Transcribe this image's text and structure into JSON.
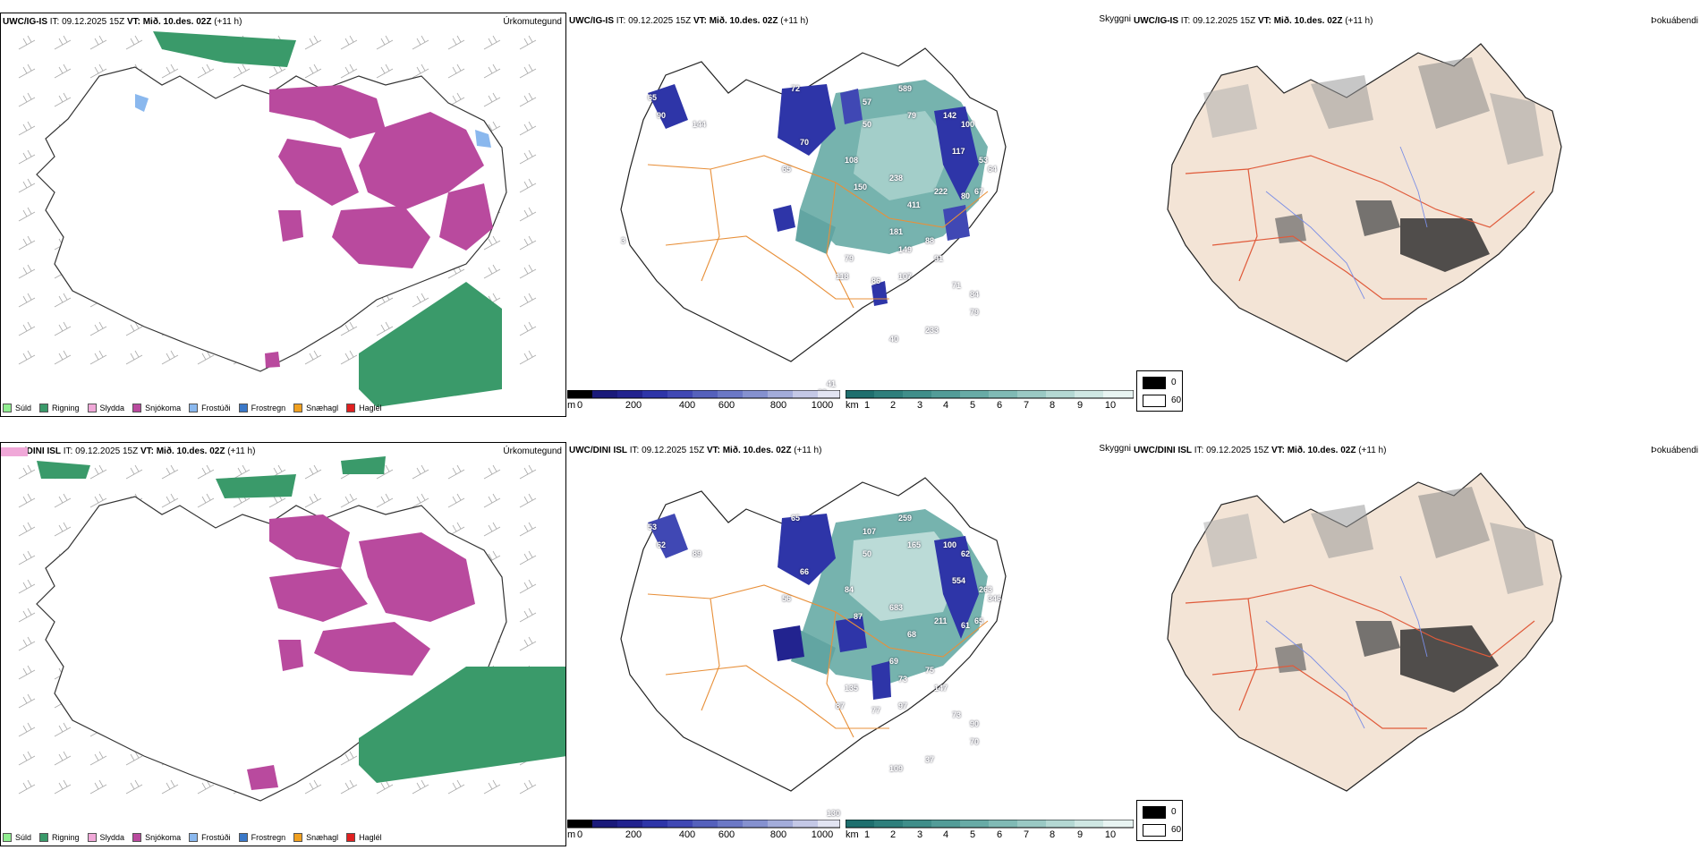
{
  "rows": [
    {
      "precip_panel": {
        "model": "UWC/IG-IS",
        "it_text": " IT: 09.12.2025 15Z ",
        "vt_label": "VT: Mið. 10.des. 02Z",
        "lead": " (+11 h)",
        "label": "Úrkomutegund"
      },
      "cloud_panel": {
        "model": "UWC/IG-IS",
        "it_text": " IT: 09.12.2025 15Z ",
        "vt_label": "VT: Mið. 10.des. 02Z",
        "lead": " (+11 h)",
        "label": "Skyggni",
        "point_values": [
          "65",
          "90",
          "144",
          "72",
          "70",
          "65",
          "108",
          "150",
          "50",
          "57",
          "589",
          "79",
          "142",
          "100",
          "117",
          "53",
          "64",
          "67",
          "80",
          "222",
          "411",
          "238",
          "181",
          "149",
          "88",
          "91",
          "79",
          "118",
          "107",
          "86",
          "71",
          "84",
          "79",
          "233",
          "40",
          "41",
          "23",
          "3"
        ]
      },
      "fog_panel": {
        "model": "UWC/IG-IS",
        "it_text": " IT: 09.12.2025 15Z ",
        "vt_label": "VT: Mið. 10.des. 02Z",
        "lead": " (+11 h)",
        "label": "Þokuábendi"
      }
    },
    {
      "precip_panel": {
        "model": "UWC/DINI ISL",
        "it_text": " IT: 09.12.2025 15Z ",
        "vt_label": "VT: Mið. 10.des. 02Z",
        "lead": " (+11 h)",
        "label": "Úrkomutegund"
      },
      "cloud_panel": {
        "model": "UWC/DINI ISL",
        "it_text": " IT: 09.12.2025 15Z ",
        "vt_label": "VT: Mið. 10.des. 02Z",
        "lead": " (+11 h)",
        "label": "Skyggni",
        "point_values": [
          "53",
          "62",
          "89",
          "65",
          "66",
          "56",
          "84",
          "87",
          "50",
          "107",
          "259",
          "165",
          "100",
          "62",
          "554",
          "263",
          "346",
          "65",
          "61",
          "211",
          "68",
          "683",
          "69",
          "73",
          "75",
          "147",
          "135",
          "87",
          "97",
          "77",
          "73",
          "90",
          "70",
          "37",
          "109",
          "130"
        ]
      },
      "fog_panel": {
        "model": "UWC/DINI ISL",
        "it_text": " IT: 09.12.2025 15Z ",
        "vt_label": "VT: Mið. 10.des. 02Z",
        "lead": " (+11 h)",
        "label": "Þokuábendi"
      }
    }
  ],
  "precip_legend": [
    {
      "label": "Súld",
      "color": "#90ee90"
    },
    {
      "label": "Rigning",
      "color": "#3a9a6a"
    },
    {
      "label": "Slydda",
      "color": "#f0a8d8"
    },
    {
      "label": "Snjókoma",
      "color": "#b94a9e"
    },
    {
      "label": "Frostúði",
      "color": "#8ab8ee"
    },
    {
      "label": "Frostregn",
      "color": "#3a78c8"
    },
    {
      "label": "Snæhagl",
      "color": "#f0a020"
    },
    {
      "label": "Haglél",
      "color": "#e02020"
    }
  ],
  "ceiling_scale": {
    "unit": "m",
    "ticks": [
      "0",
      "200",
      "400",
      "600",
      "800",
      "1000"
    ],
    "colors": [
      "#000000",
      "#1a1a7a",
      "#22238f",
      "#2e35a8",
      "#4048b4",
      "#5561bc",
      "#6b78c6",
      "#8591cf",
      "#a3acda",
      "#c4c8e6",
      "#e2e4f2"
    ]
  },
  "visibility_scale": {
    "unit": "km",
    "ticks": [
      "1",
      "2",
      "3",
      "4",
      "5",
      "6",
      "7",
      "8",
      "9",
      "10"
    ],
    "colors": [
      "#1e6f6e",
      "#2e7f7c",
      "#3f8e8a",
      "#529c98",
      "#68aba6",
      "#80bab5",
      "#9ac9c4",
      "#b4d8d3",
      "#cfe7e3",
      "#e8f4f2"
    ]
  },
  "fog_legend": {
    "values": [
      "0",
      "60"
    ]
  }
}
